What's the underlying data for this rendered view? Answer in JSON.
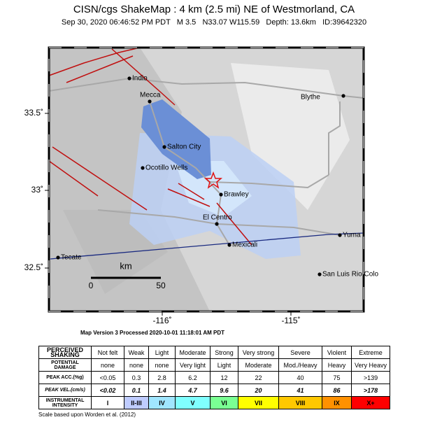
{
  "header": {
    "title": "CISN/cgs ShakeMap : 4 km (2.5 mi) NE of Westmorland, CA",
    "subtitle": "Sep 30, 2020 06:46:52 PM PDT   M 3.5   N33.07 W115.59   Depth: 13.6km   ID:39642320"
  },
  "map": {
    "lat_labels": [
      "33.5˚",
      "33˚",
      "32.5˚"
    ],
    "lon_labels": [
      "-116˚",
      "-115˚"
    ],
    "cities": [
      "Indio",
      "Mecca",
      "Blythe",
      "Salton City",
      "Ocotillo Wells",
      "Brawley",
      "El Centro",
      "Yuma",
      "Mexicali",
      "Tecate",
      "San Luis Rio Colo"
    ],
    "scale": {
      "unit": "km",
      "labels": [
        "0",
        "50"
      ]
    }
  },
  "version": "Map Version 3 Processed 2020-10-01 11:18:01 AM PDT",
  "table": {
    "rows": [
      [
        "PERCEIVED SHAKING",
        "Not felt",
        "Weak",
        "Light",
        "Moderate",
        "Strong",
        "Very strong",
        "Severe",
        "Violent",
        "Extreme"
      ],
      [
        "POTENTIAL DAMAGE",
        "none",
        "none",
        "none",
        "Very light",
        "Light",
        "Moderate",
        "Mod./Heavy",
        "Heavy",
        "Very Heavy"
      ],
      [
        "PEAK ACC.(%g)",
        "<0.05",
        "0.3",
        "2.8",
        "6.2",
        "12",
        "22",
        "40",
        "75",
        ">139"
      ],
      [
        "PEAK VEL.(cm/s)",
        "<0.02",
        "0.1",
        "1.4",
        "4.7",
        "9.6",
        "20",
        "41",
        "86",
        ">178"
      ],
      [
        "INSTRUMENTAL INTENSITY",
        "I",
        "II-III",
        "IV",
        "V",
        "VI",
        "VII",
        "VIII",
        "IX",
        "X+"
      ]
    ]
  },
  "footnote": "Scale based upon Worden et al. (2012)"
}
